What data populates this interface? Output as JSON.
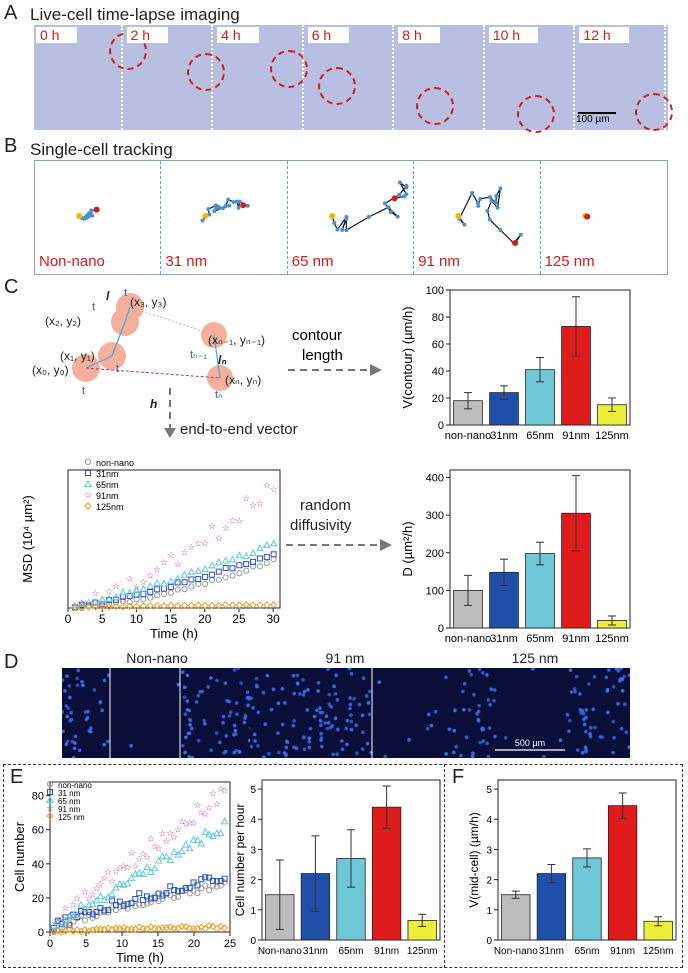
{
  "panels": {
    "A": {
      "letter": "A",
      "title": "Live-cell time-lapse imaging",
      "frames": [
        "0 h",
        "2 h",
        "4 h",
        "6 h",
        "8 h",
        "10 h",
        "12 h"
      ],
      "scalebar": "100 µm"
    },
    "B": {
      "letter": "B",
      "title": "Single-cell tracking",
      "groups": [
        "Non-nano",
        "31 nm",
        "65 nm",
        "91 nm",
        "125 nm"
      ]
    },
    "C": {
      "letter": "C",
      "diagram": {
        "t2": "t",
        "t2s": "2",
        "t3": "t",
        "t3s": "3",
        "l3": "l",
        "l3s": "3",
        "p2": "(x₂, y₂)",
        "p3": "(x₃, y₃)",
        "p1": "(x₁, y₁)",
        "t1": "t",
        "t1s": "1",
        "p0": "(x₀, y₀)",
        "t0": "t",
        "t0s": "0",
        "pn1": "(xₙ₋₁, yₙ₋₁)",
        "tn1": "tₙ₋₁",
        "ln": "lₙ",
        "pn": "(xₙ, yₙ)",
        "tn": "tₙ",
        "h": "h"
      },
      "arrows": {
        "contour": [
          "contour",
          "length"
        ],
        "e2e": "end-to-end vector",
        "diff": [
          "random",
          "diffusivity"
        ]
      }
    },
    "D": {
      "letter": "D",
      "labels": [
        "Non-nano",
        "91 nm",
        "125 nm"
      ],
      "scalebar": "500 µm"
    },
    "E": {
      "letter": "E"
    },
    "F": {
      "letter": "F"
    }
  },
  "colors": {
    "gray": "#bdbdbd",
    "blue": "#1f4fa8",
    "cyan": "#6fc8d8",
    "red": "#e01b1b",
    "yellow": "#eded3b",
    "micro": "#b8bfe0",
    "fluor": "#0a0f3a"
  },
  "chart_data": [
    {
      "id": "contour",
      "type": "bar",
      "categories": [
        "non-nano",
        "31nm",
        "65nm",
        "91nm",
        "125nm"
      ],
      "values": [
        18,
        24,
        41,
        73,
        15
      ],
      "errors": [
        6,
        5,
        9,
        22,
        5
      ],
      "ylabel": "V(contour) (µm/h)",
      "ylim": [
        0,
        100
      ],
      "yticks": [
        0,
        20,
        40,
        60,
        80,
        100
      ]
    },
    {
      "id": "diffusivity",
      "type": "bar",
      "categories": [
        "non-nano",
        "31nm",
        "65nm",
        "91nm",
        "125nm"
      ],
      "values": [
        100,
        148,
        198,
        305,
        20
      ],
      "errors": [
        40,
        35,
        30,
        100,
        12
      ],
      "ylabel": "D (µm²/h)",
      "ylim": [
        0,
        420
      ],
      "yticks": [
        0,
        100,
        200,
        300,
        400
      ]
    },
    {
      "id": "msd",
      "type": "scatter",
      "xlabel": "Time (h)",
      "ylabel": "MSD (10⁴ µm²)",
      "xlim": [
        0,
        31
      ],
      "xticks": [
        0,
        5,
        10,
        15,
        20,
        25,
        30
      ],
      "legend": [
        "non-nano",
        "31nm",
        "65nm",
        "91nm",
        "125nm"
      ],
      "series": [
        {
          "name": "non-nano",
          "end": 1.8,
          "exp": 1.6,
          "noise": 0.05
        },
        {
          "name": "31nm",
          "end": 2.05,
          "exp": 1.3,
          "noise": 0.06
        },
        {
          "name": "65nm",
          "end": 2.4,
          "exp": 1.15,
          "noise": 0.08
        },
        {
          "name": "91nm",
          "end": 4.7,
          "exp": 1.5,
          "noise": 0.35
        },
        {
          "name": "125nm",
          "end": 0.12,
          "exp": 0.5,
          "noise": 0.02
        }
      ]
    },
    {
      "id": "cellnumber",
      "type": "scatter",
      "xlabel": "Time (h)",
      "ylabel": "Cell number",
      "xlim": [
        0,
        25
      ],
      "xticks": [
        0,
        5,
        10,
        15,
        20,
        25
      ],
      "ylim": [
        0,
        88
      ],
      "yticks": [
        0,
        20,
        40,
        60,
        80
      ],
      "legend": [
        "non-nano",
        "31 nm",
        "65 nm",
        "91 nm",
        "125 nm"
      ],
      "series": [
        {
          "name": "non-nano",
          "end": 28,
          "exp": 0.75,
          "noise": 2
        },
        {
          "name": "31 nm",
          "end": 32,
          "exp": 0.7,
          "noise": 3
        },
        {
          "name": "65 nm",
          "end": 62,
          "exp": 0.9,
          "noise": 3
        },
        {
          "name": "91 nm",
          "end": 82,
          "exp": 0.9,
          "noise": 5
        },
        {
          "name": "125 nm",
          "end": 3,
          "exp": 0.6,
          "noise": 1
        }
      ]
    },
    {
      "id": "perhour",
      "type": "bar",
      "categories": [
        "Non-nano",
        "31nm",
        "65nm",
        "91nm",
        "125nm"
      ],
      "values": [
        1.5,
        2.2,
        2.7,
        4.4,
        0.65
      ],
      "errors": [
        1.15,
        1.25,
        0.95,
        0.7,
        0.2
      ],
      "ylabel": "Cell number per hour",
      "ylim": [
        0,
        5.3
      ],
      "yticks": [
        0,
        1,
        2,
        3,
        4,
        5
      ]
    },
    {
      "id": "midcell",
      "type": "bar",
      "categories": [
        "Non-nano",
        "31nm",
        "65nm",
        "91nm",
        "125nm"
      ],
      "values": [
        1.5,
        2.2,
        2.72,
        4.45,
        0.62
      ],
      "errors": [
        0.12,
        0.3,
        0.3,
        0.42,
        0.15
      ],
      "ylabel": "V(mid-cell) (µm/h)",
      "ylim": [
        0,
        5.3
      ],
      "yticks": [
        0,
        1,
        2,
        3,
        4,
        5
      ]
    }
  ]
}
